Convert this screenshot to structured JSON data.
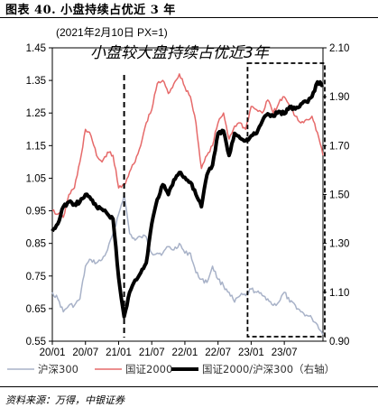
{
  "figure_title": "图表 40. 小盘持续占优近 3 年",
  "source": "资料来源：万得，中银证券",
  "chart_data": {
    "type": "line",
    "note": "(2021年2月10日 PX=1)",
    "headline": "小盘较大盘持续占优近3年",
    "x_ticks": [
      "20/01",
      "20/07",
      "21/01",
      "21/07",
      "22/01",
      "22/07",
      "23/01",
      "23/07"
    ],
    "x_range": [
      "2020-01",
      "2024-02"
    ],
    "y_left": {
      "ticks": [
        "1.45",
        "1.35",
        "1.25",
        "1.15",
        "1.05",
        "0.95",
        "0.85",
        "0.75",
        "0.65",
        "0.55"
      ],
      "range": [
        0.55,
        1.45
      ]
    },
    "y_right": {
      "ticks": [
        "2.10",
        "1.90",
        "1.70",
        "1.50",
        "1.30",
        "1.10",
        "0.90"
      ],
      "range": [
        0.9,
        2.1
      ],
      "label": "右轴"
    },
    "x": [
      "2020-01",
      "2020-02",
      "2020-03",
      "2020-04",
      "2020-05",
      "2020-06",
      "2020-07",
      "2020-08",
      "2020-09",
      "2020-10",
      "2020-11",
      "2020-12",
      "2021-01",
      "2021-02",
      "2021-03",
      "2021-04",
      "2021-05",
      "2021-06",
      "2021-07",
      "2021-08",
      "2021-09",
      "2021-10",
      "2021-11",
      "2021-12",
      "2022-01",
      "2022-02",
      "2022-03",
      "2022-04",
      "2022-05",
      "2022-06",
      "2022-07",
      "2022-08",
      "2022-09",
      "2022-10",
      "2022-11",
      "2022-12",
      "2023-01",
      "2023-02",
      "2023-03",
      "2023-04",
      "2023-05",
      "2023-06",
      "2023-07",
      "2023-08",
      "2023-09",
      "2023-10",
      "2023-11",
      "2023-12",
      "2024-01",
      "2024-02"
    ],
    "series": [
      {
        "name": "沪深300",
        "axis": "left",
        "color": "#a8b2c8",
        "width": 1.5,
        "values": [
          0.7,
          0.68,
          0.64,
          0.66,
          0.66,
          0.68,
          0.78,
          0.8,
          0.79,
          0.8,
          0.83,
          0.88,
          0.94,
          1.0,
          0.88,
          0.86,
          0.87,
          0.87,
          0.82,
          0.82,
          0.82,
          0.84,
          0.83,
          0.85,
          0.82,
          0.82,
          0.76,
          0.74,
          0.73,
          0.78,
          0.74,
          0.72,
          0.7,
          0.67,
          0.69,
          0.69,
          0.71,
          0.7,
          0.69,
          0.68,
          0.66,
          0.67,
          0.7,
          0.67,
          0.66,
          0.64,
          0.63,
          0.62,
          0.6,
          0.57
        ]
      },
      {
        "name": "国证2000",
        "axis": "left",
        "color": "#e66a6a",
        "width": 1.5,
        "values": [
          0.95,
          0.94,
          0.93,
          1.0,
          1.02,
          1.1,
          1.2,
          1.18,
          1.12,
          1.1,
          1.13,
          1.12,
          1.02,
          1.03,
          1.07,
          1.1,
          1.15,
          1.22,
          1.26,
          1.34,
          1.35,
          1.31,
          1.34,
          1.37,
          1.33,
          1.3,
          1.22,
          1.08,
          1.12,
          1.15,
          1.22,
          1.25,
          1.17,
          1.21,
          1.22,
          1.2,
          1.27,
          1.26,
          1.25,
          1.29,
          1.25,
          1.28,
          1.3,
          1.27,
          1.24,
          1.22,
          1.23,
          1.24,
          1.19,
          1.12
        ]
      },
      {
        "name": "国证2000/沪深300（右轴）",
        "axis": "right",
        "color": "#000000",
        "width": 4,
        "values": [
          1.35,
          1.38,
          1.45,
          1.47,
          1.46,
          1.47,
          1.5,
          1.48,
          1.45,
          1.44,
          1.42,
          1.4,
          1.16,
          1.0,
          1.1,
          1.15,
          1.18,
          1.22,
          1.38,
          1.48,
          1.54,
          1.5,
          1.56,
          1.59,
          1.57,
          1.55,
          1.5,
          1.45,
          1.58,
          1.62,
          1.75,
          1.76,
          1.66,
          1.75,
          1.73,
          1.72,
          1.74,
          1.75,
          1.8,
          1.83,
          1.82,
          1.84,
          1.83,
          1.86,
          1.85,
          1.87,
          1.88,
          1.9,
          1.96,
          1.95
        ]
      }
    ],
    "legend": [
      "沪深300",
      "国证2000",
      "国证2000/沪深300（右轴）"
    ],
    "annotations": {
      "vertical_dashed_line_at": "2021-02",
      "dashed_box_from": "2023-01",
      "dashed_box_to": "2024-02"
    }
  }
}
